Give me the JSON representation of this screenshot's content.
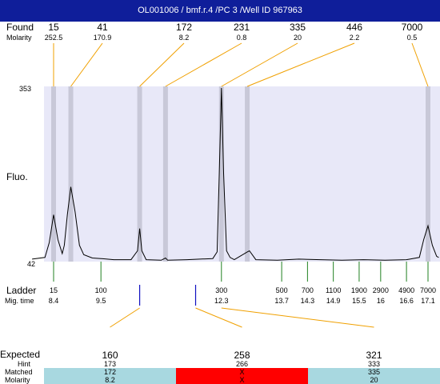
{
  "header": {
    "title": "OL001006 / bmf.r.4 /PC 3 /Well ID 967963"
  },
  "labels": {
    "found": "Found",
    "molarity": "Molarity",
    "fluo": "Fluo.",
    "ladder": "Ladder",
    "mig_time": "Mig. time",
    "expected": "Expected",
    "hint": "Hint",
    "matched": "Matched",
    "molarity_row": "Molarity"
  },
  "colors": {
    "header_bg": "#0f1e9a",
    "plot_bg": "#e8e8f8",
    "peak_band": "#c8c8d8",
    "connector": "#f0a000",
    "ladder_tick": "#208020",
    "marker_tick": "#1010c0",
    "matched_ok": "#a8d8e0",
    "matched_fail": "#ff0000"
  },
  "chart_data": {
    "type": "line",
    "title": "OL001006 / bmf.r.4 /PC 3 /Well ID 967963",
    "ylabel": "Fluo.",
    "ylim": [
      42,
      353
    ],
    "y_ticks": [
      353,
      42
    ],
    "found_peaks": [
      {
        "size": "15",
        "molarity": "252.5",
        "mig_time": 8.4
      },
      {
        "size": "41",
        "molarity": "170.9",
        "mig_time": 8.8
      },
      {
        "size": "172",
        "molarity": "8.2",
        "mig_time": 10.4
      },
      {
        "size": "231",
        "molarity": "0.8",
        "mig_time": 11.0
      },
      {
        "size": "335",
        "molarity": "20",
        "mig_time": 12.3
      },
      {
        "size": "446",
        "molarity": "2.2",
        "mig_time": 12.9
      },
      {
        "size": "7000",
        "molarity": "0.5",
        "mig_time": 17.1
      }
    ],
    "ladder": [
      {
        "size": "15",
        "mig_time": "8.4"
      },
      {
        "size": "100",
        "mig_time": "9.5"
      },
      {
        "size": "300",
        "mig_time": "12.3"
      },
      {
        "size": "500",
        "mig_time": "13.7"
      },
      {
        "size": "700",
        "mig_time": "14.3"
      },
      {
        "size": "1100",
        "mig_time": "14.9"
      },
      {
        "size": "1900",
        "mig_time": "15.5"
      },
      {
        "size": "2900",
        "mig_time": "16"
      },
      {
        "size": "4900",
        "mig_time": "16.6"
      },
      {
        "size": "7000",
        "mig_time": "17.1"
      }
    ],
    "expected_markers": [
      {
        "mig_time": 10.4
      },
      {
        "mig_time": 11.7
      }
    ],
    "trace": [
      [
        7.9,
        45
      ],
      [
        8.2,
        48
      ],
      [
        8.3,
        75
      ],
      [
        8.4,
        125
      ],
      [
        8.5,
        80
      ],
      [
        8.6,
        55
      ],
      [
        8.65,
        70
      ],
      [
        8.72,
        125
      ],
      [
        8.8,
        175
      ],
      [
        8.9,
        130
      ],
      [
        9.0,
        70
      ],
      [
        9.1,
        53
      ],
      [
        9.3,
        47
      ],
      [
        9.5,
        46
      ],
      [
        9.8,
        44
      ],
      [
        10.2,
        44
      ],
      [
        10.35,
        60
      ],
      [
        10.4,
        100
      ],
      [
        10.45,
        60
      ],
      [
        10.55,
        44
      ],
      [
        10.9,
        43
      ],
      [
        11.0,
        47
      ],
      [
        11.05,
        43
      ],
      [
        11.5,
        44
      ],
      [
        12.1,
        46
      ],
      [
        12.2,
        58
      ],
      [
        12.25,
        200
      ],
      [
        12.3,
        353
      ],
      [
        12.35,
        200
      ],
      [
        12.42,
        60
      ],
      [
        12.5,
        48
      ],
      [
        12.6,
        44
      ],
      [
        12.9,
        58
      ],
      [
        12.95,
        60
      ],
      [
        13.1,
        44
      ],
      [
        13.6,
        43
      ],
      [
        14.1,
        45
      ],
      [
        14.6,
        44
      ],
      [
        15.1,
        43
      ],
      [
        15.6,
        44
      ],
      [
        16.1,
        43
      ],
      [
        16.6,
        44
      ],
      [
        16.9,
        48
      ],
      [
        17.0,
        80
      ],
      [
        17.1,
        105
      ],
      [
        17.2,
        70
      ],
      [
        17.3,
        50
      ],
      [
        17.35,
        48
      ]
    ],
    "expected_table": [
      {
        "expected": "160",
        "hint": "173",
        "matched": "172",
        "molarity": "8.2",
        "status": "ok"
      },
      {
        "expected": "258",
        "hint": "266",
        "matched": "X",
        "molarity": "X",
        "status": "fail"
      },
      {
        "expected": "321",
        "hint": "333",
        "matched": "335",
        "molarity": "20",
        "status": "ok"
      }
    ]
  }
}
